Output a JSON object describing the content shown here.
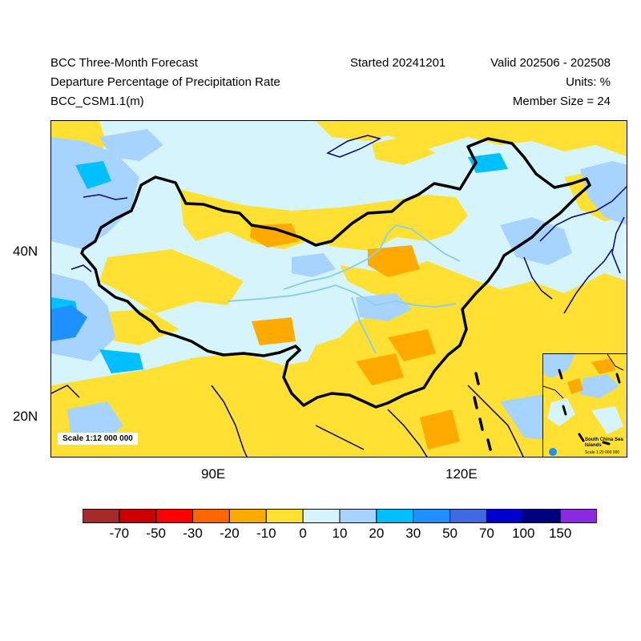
{
  "header": {
    "title": "BCC Three-Month Forecast",
    "subtitle": "Departure Percentage of Precipitation Rate",
    "model": "BCC_CSM1.1(m)",
    "started": "Started 20241201",
    "valid": "Valid 202506 - 202508",
    "units": "Units: %",
    "member_size": "Member Size = 24"
  },
  "axes": {
    "lat_labels": [
      "40N",
      "20N"
    ],
    "lon_labels": [
      "90E",
      "120E"
    ]
  },
  "map": {
    "scale_label": "Scale 1:12 000 000",
    "inset_title": "South China Sea Islands",
    "inset_scale": "Scale 1:20 000 000",
    "background_color": "#d6f4fc"
  },
  "legend": {
    "colors": [
      "#a52a2a",
      "#cc0000",
      "#ff0000",
      "#ff6600",
      "#ffaa00",
      "#ffe033",
      "#d6f4fc",
      "#a6d3ff",
      "#00bfff",
      "#1e90ff",
      "#4169e1",
      "#0000cd",
      "#000080",
      "#8a2be2"
    ],
    "labels": [
      "-70",
      "-50",
      "-30",
      "-20",
      "-10",
      "0",
      "10",
      "20",
      "30",
      "50",
      "70",
      "100",
      "150"
    ]
  }
}
